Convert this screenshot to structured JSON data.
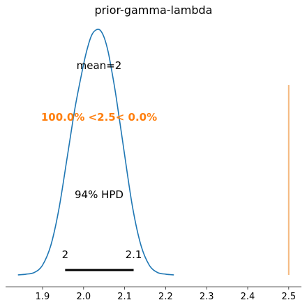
{
  "chart_data": {
    "type": "line",
    "title": "prior-gamma-lambda",
    "xlabel": "",
    "ylabel": "",
    "xlim": [
      1.84,
      2.54
    ],
    "ylim": [
      0,
      1.0
    ],
    "x_ticks": [
      "1.9",
      "2.0",
      "2.1",
      "2.2",
      "2.3",
      "2.4",
      "2.5"
    ],
    "x_tick_values": [
      1.9,
      2.0,
      2.1,
      2.2,
      2.3,
      2.4,
      2.5
    ],
    "curve": {
      "x": [
        1.84,
        1.86,
        1.88,
        1.9,
        1.92,
        1.94,
        1.96,
        1.98,
        2.0,
        2.01,
        2.02,
        2.03,
        2.04,
        2.05,
        2.06,
        2.07,
        2.08,
        2.1,
        2.12,
        2.14,
        2.16,
        2.18,
        2.2,
        2.22
      ],
      "y": [
        0.0,
        0.003,
        0.01,
        0.04,
        0.12,
        0.27,
        0.48,
        0.69,
        0.86,
        0.93,
        0.98,
        1.0,
        1.0,
        0.97,
        0.91,
        0.82,
        0.72,
        0.49,
        0.27,
        0.12,
        0.04,
        0.01,
        0.003,
        0.0
      ],
      "color": "#1f77b4"
    },
    "ref_line": {
      "x": 2.5,
      "color": "#f5b97f"
    },
    "hpd": {
      "low": 1.955,
      "high": 2.122,
      "low_label": "2",
      "high_label": "2.1",
      "label": "94% HPD"
    },
    "mean_label": "mean=2",
    "ref_text": "100.0% <2.5< 0.0%",
    "ref_text_color": "#ff7f0e"
  }
}
